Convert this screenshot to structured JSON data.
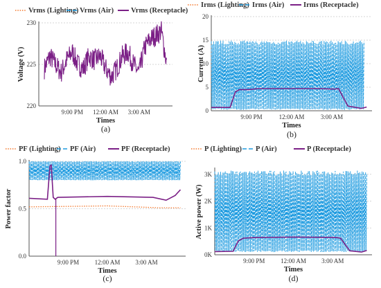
{
  "colors": {
    "lighting": "#F4772B",
    "air": "#1E9BE0",
    "receptacle": "#7B1F86",
    "grid": "#c8c8c8",
    "axis": "#555555"
  },
  "chart_data": [
    {
      "type": "line",
      "panel_label": "(a)",
      "xlabel": "Times",
      "ylabel": "Voltage (V)",
      "xlim": [
        18,
        30
      ],
      "ylim": [
        220,
        230
      ],
      "x_ticks": [
        {
          "x": 21,
          "label": "9:00 PM"
        },
        {
          "x": 24,
          "label": "12:00 AM"
        },
        {
          "x": 27,
          "label": "3:00 AM"
        }
      ],
      "y_ticks": [
        {
          "y": 220,
          "label": "220"
        },
        {
          "y": 225,
          "label": "225"
        },
        {
          "y": 230,
          "label": "230"
        }
      ],
      "legend": {
        "placement": "top",
        "entries": [
          "Vrms (Lighting)",
          "Vrms (Air)",
          "Vrms (Receptacle)"
        ]
      },
      "series": [
        {
          "name": "Vrms (Lighting)",
          "values": []
        },
        {
          "name": "Vrms (Air)",
          "values": []
        },
        {
          "name": "Vrms (Receptacle)",
          "x": [
            18.5,
            19.0,
            19.5,
            20.0,
            20.5,
            21.0,
            21.5,
            22.0,
            22.5,
            23.0,
            23.5,
            24.0,
            24.5,
            25.0,
            25.5,
            26.0,
            26.5,
            27.0,
            27.5,
            28.0,
            28.5,
            29.0,
            29.5
          ],
          "values": [
            224.5,
            226.0,
            225.0,
            224.0,
            225.5,
            226.5,
            225.0,
            224.5,
            226.0,
            225.5,
            226.0,
            224.5,
            223.5,
            224.5,
            226.0,
            226.5,
            225.0,
            224.0,
            227.0,
            228.0,
            228.5,
            229.0,
            225.0
          ]
        }
      ]
    },
    {
      "type": "line",
      "panel_label": "(b)",
      "xlabel": "Times",
      "ylabel": "Current (A)",
      "xlim": [
        18,
        30
      ],
      "ylim": [
        0,
        20
      ],
      "x_ticks": [
        {
          "x": 21,
          "label": "9:00 PM"
        },
        {
          "x": 24,
          "label": "12:00 AM"
        },
        {
          "x": 27,
          "label": "3:00 AM"
        }
      ],
      "y_ticks": [
        {
          "y": 0,
          "label": "0"
        },
        {
          "y": 5,
          "label": "5"
        },
        {
          "y": 10,
          "label": "10"
        },
        {
          "y": 15,
          "label": "15"
        },
        {
          "y": 20,
          "label": "20"
        }
      ],
      "legend": {
        "placement": "top",
        "entries": [
          "Irms (Lighting)",
          "Irms (Air)",
          "Irms (Receptacle)"
        ]
      },
      "series": [
        {
          "name": "Irms (Lighting)",
          "values": []
        },
        {
          "name": "Irms (Air)",
          "x_range": [
            18.0,
            29.4
          ],
          "low": 0.2,
          "high": 14.5
        },
        {
          "name": "Irms (Receptacle)",
          "x": [
            18.0,
            19.4,
            19.8,
            20.1,
            20.8,
            21.5,
            24.0,
            26.0,
            27.2,
            27.5,
            28.2,
            29.2,
            29.6
          ],
          "values": [
            0.7,
            0.7,
            4.0,
            4.5,
            4.5,
            4.7,
            4.7,
            4.7,
            4.6,
            4.7,
            1.0,
            0.5,
            0.8
          ]
        }
      ]
    },
    {
      "type": "line",
      "panel_label": "(c)",
      "xlabel": "Times",
      "ylabel": "Power factor",
      "xlim": [
        18,
        30
      ],
      "ylim": [
        0,
        1
      ],
      "x_ticks": [
        {
          "x": 21,
          "label": "9:00 PM"
        },
        {
          "x": 24,
          "label": "12:00 AM"
        },
        {
          "x": 27,
          "label": "3:00 AM"
        }
      ],
      "y_ticks": [
        {
          "y": 0,
          "label": "0.0"
        },
        {
          "y": 0.5,
          "label": "0.5"
        },
        {
          "y": 1,
          "label": "1.0"
        }
      ],
      "legend": {
        "placement": "top",
        "entries": [
          "PF (Lighting)",
          "PF (Air)",
          "PF (Receptacle)"
        ]
      },
      "series": [
        {
          "name": "PF (Lighting)",
          "x": [
            18.0,
            24.0,
            28.0,
            29.6
          ],
          "values": [
            0.52,
            0.53,
            0.51,
            0.51
          ]
        },
        {
          "name": "PF (Air)",
          "x_range": [
            18.0,
            29.6
          ],
          "low": 0.8,
          "high": 1.0
        },
        {
          "name": "PF (Receptacle)",
          "x": [
            18.0,
            19.4,
            19.6,
            19.7,
            19.85,
            20.0,
            20.2,
            24.0,
            27.5,
            28.5,
            29.2,
            29.6
          ],
          "values": [
            0.61,
            0.6,
            0.95,
            0.96,
            0.62,
            0.6,
            0.62,
            0.63,
            0.62,
            0.59,
            0.64,
            0.7
          ]
        }
      ]
    },
    {
      "type": "line",
      "panel_label": "(d)",
      "xlabel": "Times",
      "ylabel": "Active power (W)",
      "xlim": [
        18,
        30
      ],
      "ylim": [
        0,
        3200
      ],
      "x_ticks": [
        {
          "x": 21,
          "label": "9:00 PM"
        },
        {
          "x": 24,
          "label": "12:00 AM"
        },
        {
          "x": 27,
          "label": "3:00 AM"
        }
      ],
      "y_ticks": [
        {
          "y": 0,
          "label": "0K"
        },
        {
          "y": 1000,
          "label": "1K"
        },
        {
          "y": 2000,
          "label": "2K"
        },
        {
          "y": 3000,
          "label": "3K"
        }
      ],
      "legend": {
        "placement": "top",
        "entries": [
          "P (Lighting)",
          "P (Air)",
          "P (Receptacle)"
        ]
      },
      "series": [
        {
          "name": "P (Lighting)",
          "values": []
        },
        {
          "name": "P (Air)",
          "x_range": [
            18.0,
            29.6
          ],
          "low": 100,
          "high": 3050
        },
        {
          "name": "P (Receptacle)",
          "x": [
            18.0,
            19.4,
            19.8,
            20.2,
            21.0,
            24.0,
            26.5,
            27.3,
            27.6,
            28.3,
            29.2,
            29.6
          ],
          "values": [
            120,
            130,
            520,
            620,
            640,
            660,
            650,
            640,
            620,
            150,
            100,
            160
          ]
        }
      ]
    }
  ]
}
